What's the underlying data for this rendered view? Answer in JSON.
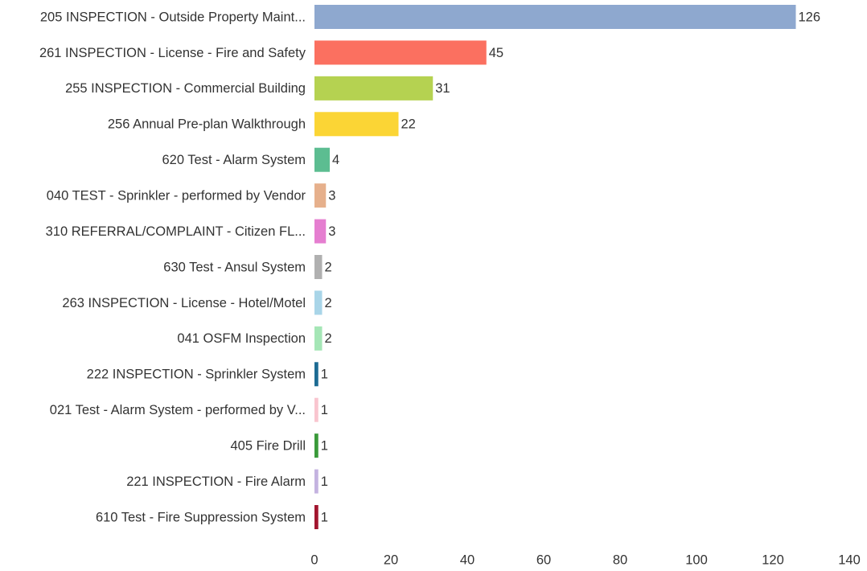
{
  "chart_data": {
    "type": "bar",
    "orientation": "horizontal",
    "categories": [
      "205 INSPECTION - Outside Property Maint...",
      "261 INSPECTION - License - Fire and Safety",
      "255 INSPECTION - Commercial Building",
      "256 Annual Pre-plan Walkthrough",
      "620 Test - Alarm System",
      "040 TEST - Sprinkler - performed by Vendor",
      "310 REFERRAL/COMPLAINT - Citizen FL...",
      "630 Test - Ansul System",
      "263 INSPECTION - License - Hotel/Motel",
      "041 OSFM Inspection",
      "222 INSPECTION - Sprinkler System",
      "021 Test - Alarm System - performed by V...",
      "405 Fire Drill",
      "221 INSPECTION - Fire Alarm",
      "610 Test - Fire Suppression System"
    ],
    "values": [
      126,
      45,
      31,
      22,
      4,
      3,
      3,
      2,
      2,
      2,
      1,
      1,
      1,
      1,
      1
    ],
    "colors": [
      "#8ea8cf",
      "#fb7060",
      "#b5d251",
      "#fbd535",
      "#5cbd91",
      "#e6b08c",
      "#e57ed0",
      "#b0b0b0",
      "#a9d5e8",
      "#a5e6b6",
      "#1d6b93",
      "#f9c5cf",
      "#3a9a3a",
      "#c4b3e0",
      "#a2152f"
    ],
    "xlim": [
      0,
      140
    ],
    "xticks": [
      0,
      20,
      40,
      60,
      80,
      100,
      120,
      140
    ],
    "grid": false,
    "data_labels": true
  }
}
